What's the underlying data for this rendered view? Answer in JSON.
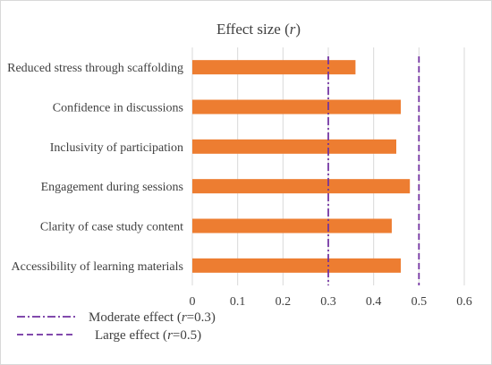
{
  "chart_data": {
    "type": "bar",
    "orientation": "horizontal",
    "title": "Effect size (r)",
    "title_parts": {
      "prefix": "Effect size (",
      "italic": "r",
      "suffix": ")"
    },
    "categories": [
      "Reduced stress through scaffolding",
      "Confidence in discussions",
      "Inclusivity of participation",
      "Engagement during sessions",
      "Clarity of case study content",
      "Accessibility of learning materials"
    ],
    "values": [
      0.36,
      0.46,
      0.45,
      0.48,
      0.44,
      0.46
    ],
    "xlim": [
      0,
      0.6
    ],
    "xticks": [
      0,
      0.1,
      0.2,
      0.3,
      0.4,
      0.5,
      0.6
    ],
    "xtick_labels": [
      "0",
      "0.1",
      "0.2",
      "0.3",
      "0.4",
      "0.5",
      "0.6"
    ],
    "grid": "vertical",
    "bar_color": "#ED7D31",
    "reference_lines": [
      {
        "value": 0.3,
        "style": "dash-dot",
        "color": "#7030A0",
        "label_prefix": "Moderate effect (",
        "label_italic": "r",
        "label_suffix": "=0.3)"
      },
      {
        "value": 0.5,
        "style": "dashed",
        "color": "#7030A0",
        "label_prefix": "Large effect (",
        "label_italic": "r",
        "label_suffix": "=0.5)"
      }
    ],
    "legend_position": "bottom-left"
  }
}
